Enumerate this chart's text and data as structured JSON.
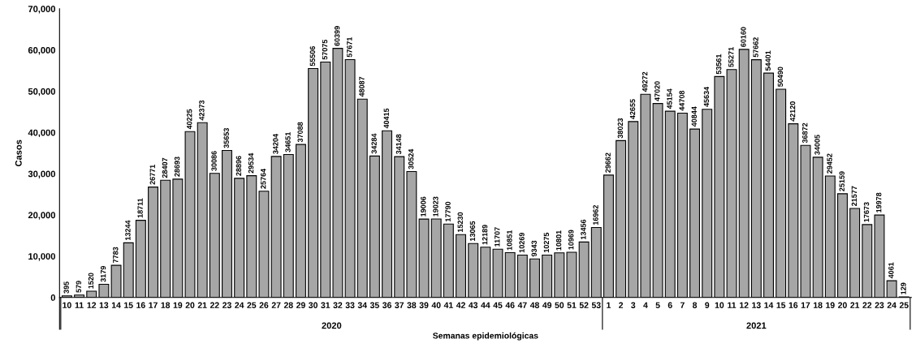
{
  "chart_data": {
    "type": "bar",
    "xlabel": "Semanas epidemiológicas",
    "ylabel": "Casos",
    "categories": [
      "10",
      "11",
      "12",
      "13",
      "14",
      "15",
      "16",
      "17",
      "18",
      "19",
      "20",
      "21",
      "22",
      "23",
      "24",
      "25",
      "26",
      "27",
      "28",
      "29",
      "30",
      "31",
      "32",
      "33",
      "34",
      "35",
      "36",
      "37",
      "38",
      "39",
      "40",
      "41",
      "42",
      "43",
      "44",
      "45",
      "46",
      "47",
      "48",
      "49",
      "50",
      "51",
      "52",
      "53",
      "1",
      "2",
      "3",
      "4",
      "5",
      "6",
      "7",
      "8",
      "9",
      "10",
      "11",
      "12",
      "13",
      "14",
      "15",
      "16",
      "17",
      "18",
      "19",
      "20",
      "21",
      "22",
      "23",
      "24",
      "25"
    ],
    "values": [
      395,
      579,
      1520,
      3179,
      7783,
      13244,
      18711,
      26771,
      28407,
      28693,
      40225,
      42373,
      30086,
      35653,
      28896,
      29534,
      25764,
      34204,
      34651,
      37088,
      55506,
      57075,
      60399,
      57671,
      48087,
      34284,
      40415,
      34148,
      30524,
      19006,
      19023,
      17790,
      15230,
      13065,
      12189,
      11707,
      10851,
      10269,
      9343,
      10275,
      10801,
      10969,
      13456,
      16962,
      29662,
      38023,
      42655,
      49272,
      47020,
      45154,
      44708,
      40844,
      45634,
      53561,
      55271,
      60160,
      57662,
      54401,
      50490,
      42120,
      36872,
      34005,
      29452,
      25159,
      21577,
      17673,
      19978,
      4061,
      129
    ],
    "color": "#a6a6a6",
    "data_labels": true,
    "annotations": [
      "2020",
      "2021"
    ],
    "ylim": [
      0,
      70000
    ],
    "yticks": [
      0,
      {
        "value": 10000,
        "label": "10,000"
      },
      {
        "value": 20000,
        "label": "20,000"
      },
      {
        "value": 30000,
        "label": "30,000"
      },
      {
        "value": 40000,
        "label": "40,000"
      },
      {
        "value": 50000,
        "label": "50,000"
      },
      {
        "value": 60000,
        "label": "60,000"
      },
      {
        "value": 70000,
        "label": "70,000"
      }
    ],
    "grid": false,
    "legend": false
  }
}
